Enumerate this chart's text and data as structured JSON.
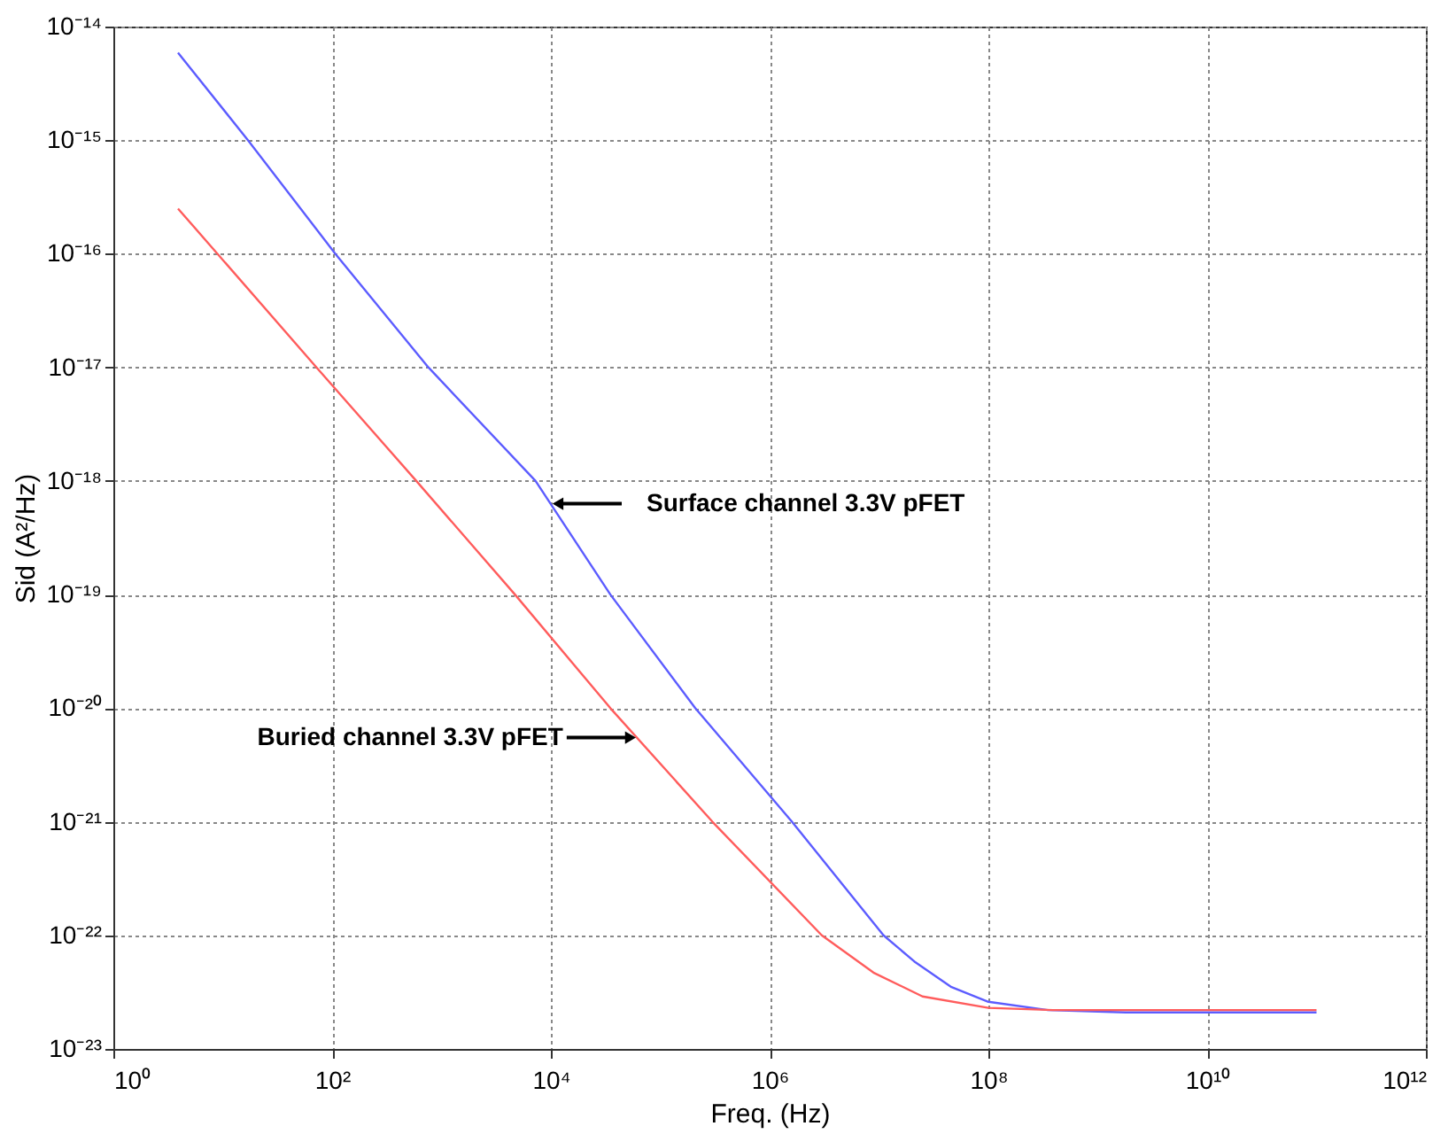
{
  "chart_data": {
    "type": "line",
    "xlabel": "Freq. (Hz)",
    "ylabel": "Sid (A²/Hz)",
    "log": "xy",
    "grid": true,
    "xlim": [
      1,
      1000000000000.0
    ],
    "ylim": [
      1e-23,
      1e-14
    ],
    "xticks": [
      {
        "value": 1,
        "label": "10⁰"
      },
      {
        "value": 100,
        "label": "10²"
      },
      {
        "value": 10000,
        "label": "10⁴"
      },
      {
        "value": 1000000,
        "label": "10⁶"
      },
      {
        "value": 100000000,
        "label": "10⁸"
      },
      {
        "value": 10000000000,
        "label": "10¹⁰"
      },
      {
        "value": 1000000000000,
        "label": "10¹²"
      }
    ],
    "yticks": [
      {
        "value": 1e-23,
        "label": "10⁻²³"
      },
      {
        "value": 1e-22,
        "label": "10⁻²²"
      },
      {
        "value": 1e-21,
        "label": "10⁻²¹"
      },
      {
        "value": 1e-20,
        "label": "10⁻²⁰"
      },
      {
        "value": 1e-19,
        "label": "10⁻¹⁹"
      },
      {
        "value": 1e-18,
        "label": "10⁻¹⁸"
      },
      {
        "value": 1e-17,
        "label": "10⁻¹⁷"
      },
      {
        "value": 1e-16,
        "label": "10⁻¹⁶"
      },
      {
        "value": 1e-15,
        "label": "10⁻¹⁵"
      },
      {
        "value": 1e-14,
        "label": "10⁻¹⁴"
      }
    ],
    "series": [
      {
        "color": "#5c5cff",
        "x": [
          3.9,
          17,
          107,
          759,
          7244,
          35000,
          209000,
          1600000,
          11000000,
          21000000,
          46000000,
          100000000,
          350000000,
          1800000000,
          100000000000
        ],
        "values": [
          5.9e-15,
          1e-15,
          1e-16,
          1e-17,
          1e-18,
          1e-19,
          1e-20,
          1e-21,
          1e-22,
          5.9e-23,
          3.5e-23,
          2.6e-23,
          2.2e-23,
          2.1e-23,
          2.1e-23
        ]
      },
      {
        "color": "#ff5c5c",
        "x": [
          3.9,
          72,
          589,
          4700,
          35000,
          300000,
          3000000,
          8900000,
          25000000,
          100000000,
          390000000,
          100000000000
        ],
        "values": [
          2.5e-16,
          1e-17,
          1e-18,
          1e-19,
          1e-20,
          1e-21,
          1e-22,
          4.7e-23,
          2.9e-23,
          2.3e-23,
          2.2e-23,
          2.2e-23
        ]
      }
    ],
    "annotations": [
      {
        "text": "Surface channel 3.3V pFET",
        "x": 10000,
        "y": 6.3e-19
      },
      {
        "text": "Buried channel 3.3V pFET",
        "x": 62000,
        "y": 5.5e-21
      }
    ]
  }
}
